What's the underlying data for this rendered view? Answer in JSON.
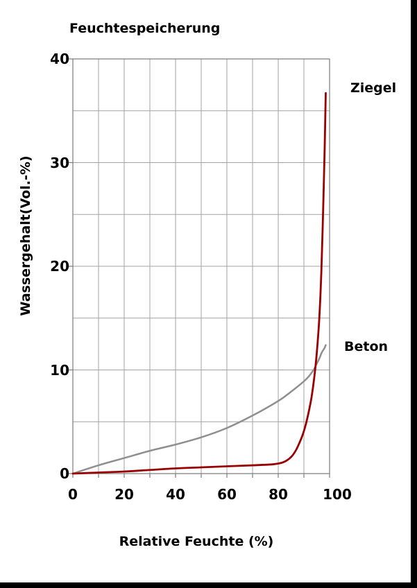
{
  "frame": {
    "background": "#ffffff",
    "right_bar_color": "#000000",
    "bottom_bar_color": "#000000"
  },
  "chart_data": {
    "type": "line",
    "title": "Feuchtespeicherung",
    "xlabel": "Relative Feuchte (%)",
    "ylabel": "Wassergehalt(Vol.-%)",
    "xlim": [
      0,
      100
    ],
    "ylim": [
      0,
      40
    ],
    "x_ticks": [
      0,
      20,
      40,
      60,
      80,
      100
    ],
    "y_ticks": [
      0,
      10,
      20,
      30,
      40
    ],
    "grid": {
      "visible": true,
      "x_step": 10,
      "y_step": 5,
      "line_color": "#a2a2a2",
      "border_color": "#7a7a7a"
    },
    "legend_position": "right-annotations",
    "series": [
      {
        "name": "Ziegel",
        "color": "#990000",
        "stroke_width": 2.8,
        "points": [
          [
            0,
            0
          ],
          [
            10,
            0.1
          ],
          [
            20,
            0.2
          ],
          [
            30,
            0.35
          ],
          [
            40,
            0.5
          ],
          [
            50,
            0.6
          ],
          [
            60,
            0.7
          ],
          [
            70,
            0.8
          ],
          [
            78,
            0.9
          ],
          [
            82,
            1.1
          ],
          [
            85,
            1.6
          ],
          [
            87,
            2.3
          ],
          [
            89,
            3.4
          ],
          [
            90,
            4.1
          ],
          [
            91,
            5.0
          ],
          [
            92,
            6.1
          ],
          [
            93,
            7.4
          ],
          [
            94,
            9.2
          ],
          [
            95,
            11.6
          ],
          [
            96,
            15.0
          ],
          [
            96.8,
            19.5
          ],
          [
            97.5,
            25.5
          ],
          [
            98.1,
            31.5
          ],
          [
            98.5,
            36.7
          ]
        ]
      },
      {
        "name": "Beton",
        "color": "#8f8f8f",
        "stroke_width": 2.5,
        "points": [
          [
            0,
            0
          ],
          [
            10,
            0.8
          ],
          [
            20,
            1.5
          ],
          [
            30,
            2.2
          ],
          [
            40,
            2.8
          ],
          [
            50,
            3.5
          ],
          [
            60,
            4.4
          ],
          [
            70,
            5.6
          ],
          [
            80,
            7.0
          ],
          [
            85,
            7.9
          ],
          [
            90,
            8.9
          ],
          [
            92,
            9.4
          ],
          [
            94,
            10.1
          ],
          [
            95,
            10.6
          ],
          [
            96,
            11.1
          ],
          [
            97,
            11.7
          ],
          [
            98,
            12.1
          ],
          [
            98.5,
            12.4
          ]
        ]
      }
    ]
  }
}
